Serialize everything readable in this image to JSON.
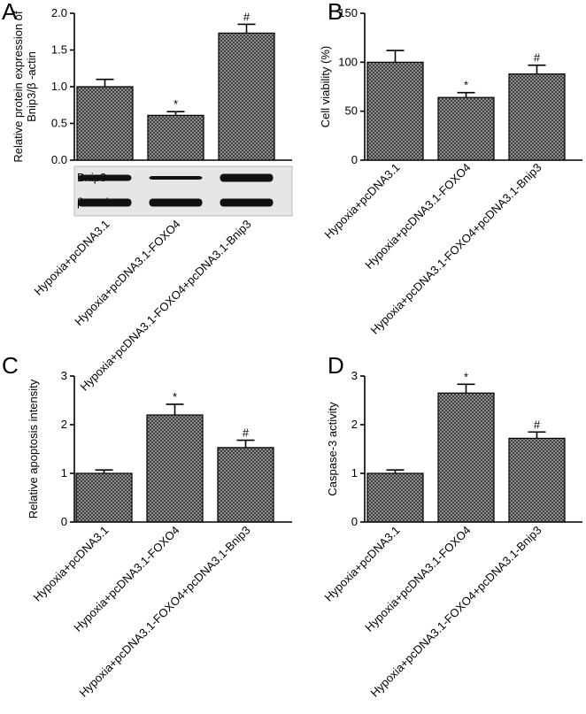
{
  "chart_data": [
    {
      "type": "bar",
      "panel": "A",
      "y_label": [
        "Relative protein expression of",
        "Bnip3/β -actin"
      ],
      "categories": [
        "Hypoxia+pcDNA3.1",
        "Hypoxia+pcDNA3.1-FOXO4",
        "Hypoxia+pcDNA3.1-FOXO4+pcDNA3.1-Bnip3"
      ],
      "values": [
        1.0,
        0.61,
        1.73
      ],
      "errors": [
        0.1,
        0.05,
        0.12
      ],
      "annotations": [
        null,
        "*",
        "#"
      ],
      "ylim": [
        0,
        2
      ],
      "yticks": [
        {
          "value": 0,
          "label": "0.0"
        },
        0.5,
        {
          "value": 1,
          "label": "1.0"
        },
        1.5,
        {
          "value": 2,
          "label": "2.0"
        }
      ],
      "color": "#9a9a9a",
      "blot_labels": [
        "Bnip3",
        "β -actin"
      ]
    },
    {
      "type": "bar",
      "panel": "B",
      "y_label": [
        "Cell viability (%)"
      ],
      "categories": [
        "Hypoxia+pcDNA3.1",
        "Hypoxia+pcDNA3.1-FOXO4",
        "Hypoxia+pcDNA3.1-FOXO4+pcDNA3.1-Bnip3"
      ],
      "values": [
        100,
        64,
        88
      ],
      "errors": [
        12,
        5,
        9
      ],
      "annotations": [
        null,
        "*",
        "#"
      ],
      "ylim": [
        0,
        150
      ],
      "yticks": [
        0,
        50,
        100,
        150
      ],
      "color": "#9a9a9a"
    },
    {
      "type": "bar",
      "panel": "C",
      "y_label": [
        "Relative apoptosis intensity"
      ],
      "categories": [
        "Hypoxia+pcDNA3.1",
        "Hypoxia+pcDNA3.1-FOXO4",
        "Hypoxia+pcDNA3.1-FOXO4+pcDNA3.1-Bnip3"
      ],
      "values": [
        1.0,
        2.2,
        1.53
      ],
      "errors": [
        0.07,
        0.22,
        0.15
      ],
      "annotations": [
        null,
        "*",
        "#"
      ],
      "ylim": [
        0,
        3
      ],
      "yticks": [
        0,
        1,
        2,
        3
      ],
      "color": "#9a9a9a"
    },
    {
      "type": "bar",
      "panel": "D",
      "y_label": [
        "Caspase-3 activity"
      ],
      "categories": [
        "Hypoxia+pcDNA3.1",
        "Hypoxia+pcDNA3.1-FOXO4",
        "Hypoxia+pcDNA3.1-FOXO4+pcDNA3.1-Bnip3"
      ],
      "values": [
        1.0,
        2.65,
        1.72
      ],
      "errors": [
        0.07,
        0.18,
        0.13
      ],
      "annotations": [
        null,
        "*",
        "#"
      ],
      "ylim": [
        0,
        3
      ],
      "yticks": [
        0,
        1,
        2,
        3
      ],
      "color": "#9a9a9a"
    }
  ]
}
